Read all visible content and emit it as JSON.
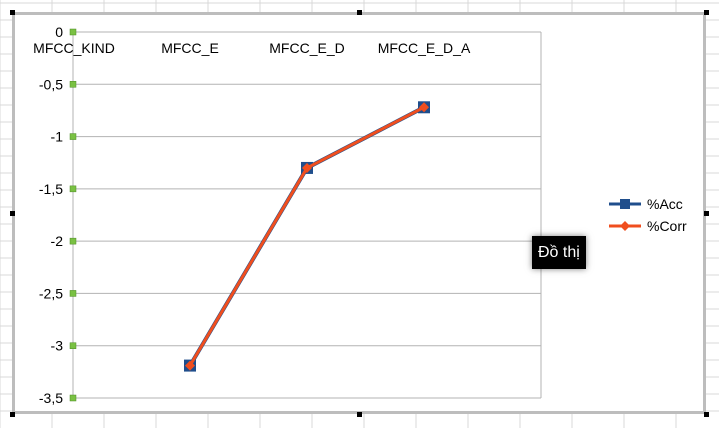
{
  "colors": {
    "acc": "#1f4e8c",
    "corr": "#f04e1e",
    "tick_marker": "#7ac143",
    "grid": "#b3b3b3",
    "sheet_grid": "#d9d9d9",
    "frame": "#bdbdbd"
  },
  "tooltip": {
    "text": "Đồ thị"
  },
  "chart_data": {
    "type": "line",
    "title": "",
    "xlabel": "",
    "ylabel": "",
    "categories": [
      "MFCC_KIND",
      "MFCC_E",
      "MFCC_E_D",
      "MFCC_E_D_A"
    ],
    "x_axis_position": "top",
    "ylim": [
      -3.5,
      0
    ],
    "yticks": [
      0,
      -0.5,
      -1,
      -1.5,
      -2,
      -2.5,
      -3,
      -3.5
    ],
    "ytick_labels": [
      "0",
      "-0,5",
      "-1",
      "-1,5",
      "-2",
      "-2,5",
      "-3",
      "-3,5"
    ],
    "grid": "horizontal",
    "legend_position": "right",
    "series": [
      {
        "name": "%Acc",
        "marker": "square",
        "color": "#1f4e8c",
        "values": [
          null,
          -3.19,
          -1.3,
          -0.72
        ]
      },
      {
        "name": "%Corr",
        "marker": "diamond",
        "color": "#f04e1e",
        "values": [
          null,
          -3.19,
          -1.3,
          -0.72
        ]
      }
    ]
  }
}
